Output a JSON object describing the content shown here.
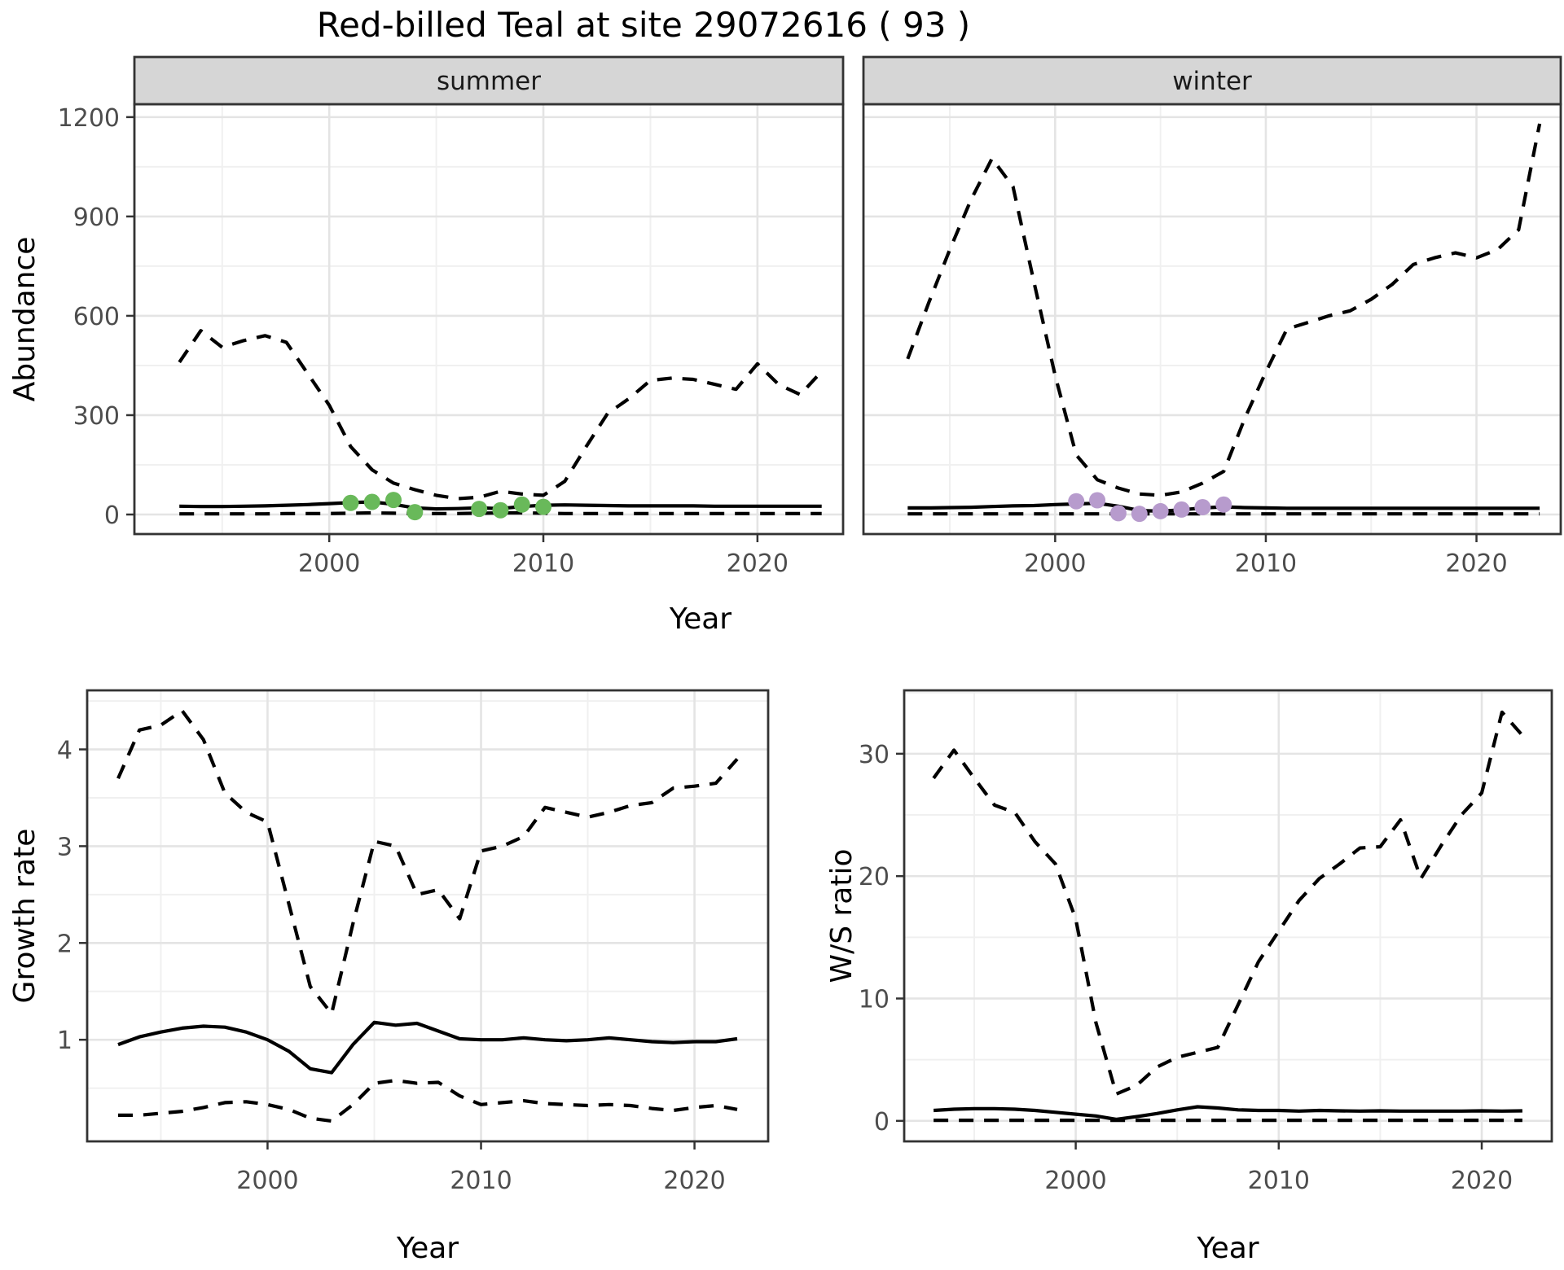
{
  "title": "Red-billed Teal at site 29072616 ( 93 )",
  "shared_axes": {
    "top_xlabel": "Year",
    "top_ylabel": "Abundance"
  },
  "colors": {
    "summer_points": "#69b95a",
    "winter_points": "#b79bcd",
    "line": "#000000",
    "panel_border": "#333333",
    "grid_major": "#e4e4e4",
    "grid_minor": "#f0f0f0",
    "strip_bg": "#d6d6d6",
    "strip_text": "#1a1a1a",
    "tick_text": "#4d4d4d"
  },
  "chart_data": [
    {
      "id": "abundance-summer",
      "type": "line",
      "facet": "summer",
      "xlabel": "Year",
      "ylabel": "Abundance",
      "xlim": [
        1990.9,
        2024.0
      ],
      "ylim": [
        -59,
        1239
      ],
      "xticks": [
        2000,
        2010,
        2020
      ],
      "yticks": [
        0,
        300,
        600,
        900,
        1200
      ],
      "grid": true,
      "series": [
        {
          "name": "upper-credible-interval",
          "style": "dashed",
          "x": [
            1993,
            1994,
            1995,
            1996,
            1997,
            1998,
            1999,
            2000,
            2001,
            2002,
            2003,
            2004,
            2005,
            2006,
            2007,
            2008,
            2009,
            2010,
            2011,
            2012,
            2013,
            2014,
            2015,
            2016,
            2017,
            2018,
            2019,
            2020,
            2021,
            2022,
            2023
          ],
          "y": [
            460,
            555,
            505,
            525,
            540,
            520,
            425,
            330,
            205,
            135,
            95,
            75,
            58,
            48,
            52,
            70,
            62,
            58,
            100,
            205,
            305,
            350,
            405,
            412,
            408,
            393,
            378,
            455,
            392,
            362,
            432
          ]
        },
        {
          "name": "median-abundance",
          "style": "solid",
          "x": [
            1993,
            1994,
            1995,
            1996,
            1997,
            1998,
            1999,
            2000,
            2001,
            2002,
            2003,
            2004,
            2005,
            2006,
            2007,
            2008,
            2009,
            2010,
            2011,
            2012,
            2013,
            2014,
            2015,
            2016,
            2017,
            2018,
            2019,
            2020,
            2021,
            2022,
            2023
          ],
          "y": [
            25,
            24,
            24,
            25,
            26,
            28,
            30,
            33,
            36,
            38,
            31,
            20,
            17,
            18,
            20,
            18,
            24,
            28,
            29,
            28,
            27,
            26,
            26,
            26,
            26,
            25,
            25,
            25,
            25,
            25,
            25
          ]
        },
        {
          "name": "lower-credible-interval",
          "style": "dashed",
          "x": [
            1993,
            1994,
            1995,
            1996,
            1997,
            1998,
            1999,
            2000,
            2001,
            2002,
            2003,
            2004,
            2005,
            2006,
            2007,
            2008,
            2009,
            2010,
            2011,
            2012,
            2013,
            2014,
            2015,
            2016,
            2017,
            2018,
            2019,
            2020,
            2021,
            2022,
            2023
          ],
          "y": [
            2,
            2,
            2,
            2,
            2,
            3,
            3,
            3,
            4,
            5,
            4,
            3,
            3,
            3,
            4,
            5,
            5,
            4,
            3,
            3,
            3,
            3,
            3,
            3,
            3,
            3,
            3,
            3,
            3,
            3,
            3
          ]
        }
      ],
      "points": {
        "name": "observed-summer-counts",
        "color": "#69b95a",
        "x": [
          2001,
          2002,
          2003,
          2004,
          2007,
          2008,
          2009,
          2010
        ],
        "y": [
          35,
          38,
          44,
          7,
          17,
          13,
          30,
          23
        ]
      }
    },
    {
      "id": "abundance-winter",
      "type": "line",
      "facet": "winter",
      "xlabel": "Year",
      "ylabel": "Abundance",
      "xlim": [
        1990.9,
        2024.0
      ],
      "ylim": [
        -59,
        1239
      ],
      "xticks": [
        2000,
        2010,
        2020
      ],
      "yticks": [
        0,
        300,
        600,
        900,
        1200
      ],
      "grid": true,
      "series": [
        {
          "name": "upper-credible-interval",
          "style": "dashed",
          "x": [
            1993,
            1994,
            1995,
            1996,
            1997,
            1998,
            1999,
            2000,
            2001,
            2002,
            2003,
            2004,
            2005,
            2006,
            2007,
            2008,
            2009,
            2010,
            2011,
            2012,
            2013,
            2014,
            2015,
            2016,
            2017,
            2018,
            2019,
            2020,
            2021,
            2022,
            2023
          ],
          "y": [
            470,
            640,
            800,
            950,
            1075,
            990,
            700,
            420,
            180,
            105,
            80,
            62,
            58,
            68,
            95,
            130,
            290,
            430,
            560,
            580,
            600,
            615,
            650,
            695,
            755,
            775,
            790,
            775,
            800,
            860,
            1180
          ]
        },
        {
          "name": "median-abundance",
          "style": "solid",
          "x": [
            1993,
            1994,
            1995,
            1996,
            1997,
            1998,
            1999,
            2000,
            2001,
            2002,
            2003,
            2004,
            2005,
            2006,
            2007,
            2008,
            2009,
            2010,
            2011,
            2012,
            2013,
            2014,
            2015,
            2016,
            2017,
            2018,
            2019,
            2020,
            2021,
            2022,
            2023
          ],
          "y": [
            20,
            20,
            21,
            22,
            24,
            26,
            27,
            30,
            32,
            34,
            25,
            12,
            10,
            14,
            20,
            23,
            21,
            20,
            19,
            19,
            19,
            19,
            19,
            19,
            19,
            19,
            19,
            19,
            19,
            19,
            19
          ]
        },
        {
          "name": "lower-credible-interval",
          "style": "dashed",
          "x": [
            1993,
            1994,
            1995,
            1996,
            1997,
            1998,
            1999,
            2000,
            2001,
            2002,
            2003,
            2004,
            2005,
            2006,
            2007,
            2008,
            2009,
            2010,
            2011,
            2012,
            2013,
            2014,
            2015,
            2016,
            2017,
            2018,
            2019,
            2020,
            2021,
            2022,
            2023
          ],
          "y": [
            2,
            2,
            2,
            2,
            2,
            2,
            2,
            2,
            2,
            2,
            2,
            2,
            2,
            2,
            2,
            2,
            2,
            2,
            2,
            2,
            2,
            2,
            2,
            2,
            2,
            2,
            2,
            2,
            2,
            2,
            2
          ]
        }
      ],
      "points": {
        "name": "observed-winter-counts",
        "color": "#b79bcd",
        "x": [
          2001,
          2002,
          2003,
          2004,
          2005,
          2006,
          2007,
          2008
        ],
        "y": [
          40,
          43,
          4,
          2,
          10,
          15,
          22,
          30
        ]
      }
    },
    {
      "id": "growth-rate",
      "type": "line",
      "facet": null,
      "xlabel": "Year",
      "ylabel": "Growth rate",
      "xlim": [
        1991.55,
        2023.45
      ],
      "ylim": [
        -0.05,
        4.61
      ],
      "xticks": [
        2000,
        2010,
        2020
      ],
      "yticks": [
        1,
        2,
        3,
        4
      ],
      "grid": true,
      "series": [
        {
          "name": "upper-credible-interval",
          "style": "dashed",
          "x": [
            1993,
            1994,
            1995,
            1996,
            1997,
            1998,
            1999,
            2000,
            2001,
            2002,
            2003,
            2004,
            2005,
            2006,
            2007,
            2008,
            2009,
            2010,
            2011,
            2012,
            2013,
            2014,
            2015,
            2016,
            2017,
            2018,
            2019,
            2020,
            2021,
            2022
          ],
          "y": [
            3.7,
            4.2,
            4.25,
            4.4,
            4.1,
            3.55,
            3.35,
            3.25,
            2.4,
            1.55,
            1.27,
            2.2,
            3.05,
            3.0,
            2.5,
            2.55,
            2.25,
            2.95,
            3.0,
            3.1,
            3.4,
            3.35,
            3.3,
            3.35,
            3.42,
            3.45,
            3.6,
            3.62,
            3.65,
            3.9
          ]
        },
        {
          "name": "median-growth-rate",
          "style": "solid",
          "x": [
            1993,
            1994,
            1995,
            1996,
            1997,
            1998,
            1999,
            2000,
            2001,
            2002,
            2003,
            2004,
            2005,
            2006,
            2007,
            2008,
            2009,
            2010,
            2011,
            2012,
            2013,
            2014,
            2015,
            2016,
            2017,
            2018,
            2019,
            2020,
            2021,
            2022
          ],
          "y": [
            0.95,
            1.03,
            1.08,
            1.12,
            1.14,
            1.13,
            1.08,
            1.0,
            0.88,
            0.7,
            0.66,
            0.95,
            1.18,
            1.15,
            1.17,
            1.09,
            1.01,
            1.0,
            1.0,
            1.02,
            1.0,
            0.99,
            1.0,
            1.02,
            1.0,
            0.98,
            0.97,
            0.98,
            0.98,
            1.01
          ]
        },
        {
          "name": "lower-credible-interval",
          "style": "dashed",
          "x": [
            1993,
            1994,
            1995,
            1996,
            1997,
            1998,
            1999,
            2000,
            2001,
            2002,
            2003,
            2004,
            2005,
            2006,
            2007,
            2008,
            2009,
            2010,
            2011,
            2012,
            2013,
            2014,
            2015,
            2016,
            2017,
            2018,
            2019,
            2020,
            2021,
            2022
          ],
          "y": [
            0.22,
            0.22,
            0.24,
            0.26,
            0.3,
            0.35,
            0.36,
            0.33,
            0.28,
            0.19,
            0.16,
            0.33,
            0.55,
            0.58,
            0.55,
            0.56,
            0.42,
            0.33,
            0.35,
            0.37,
            0.34,
            0.33,
            0.32,
            0.33,
            0.32,
            0.29,
            0.27,
            0.3,
            0.32,
            0.28
          ]
        }
      ],
      "points": null
    },
    {
      "id": "ws-ratio",
      "type": "line",
      "facet": null,
      "xlabel": "Year",
      "ylabel": "W/S ratio",
      "xlim": [
        1991.55,
        2023.45
      ],
      "ylim": [
        -1.675,
        35.18
      ],
      "xticks": [
        2000,
        2010,
        2020
      ],
      "yticks": [
        0,
        10,
        20,
        30
      ],
      "grid": true,
      "series": [
        {
          "name": "upper-credible-interval",
          "style": "dashed",
          "x": [
            1993,
            1994,
            1995,
            1996,
            1997,
            1998,
            1999,
            2000,
            2001,
            2002,
            2003,
            2004,
            2005,
            2006,
            2007,
            2008,
            2009,
            2010,
            2011,
            2012,
            2013,
            2014,
            2015,
            2016,
            2017,
            2018,
            2019,
            2020,
            2021,
            2022
          ],
          "y": [
            28,
            30.3,
            28,
            25.8,
            25.2,
            22.8,
            21,
            16.5,
            8,
            2.2,
            2.9,
            4.4,
            5.2,
            5.6,
            6,
            9.5,
            13,
            15.5,
            18,
            19.8,
            21,
            22.3,
            22.4,
            24.6,
            19.8,
            22.5,
            25,
            26.8,
            33.4,
            31.5
          ]
        },
        {
          "name": "median-ws-ratio",
          "style": "solid",
          "x": [
            1993,
            1994,
            1995,
            1996,
            1997,
            1998,
            1999,
            2000,
            2001,
            2002,
            2003,
            2004,
            2005,
            2006,
            2007,
            2008,
            2009,
            2010,
            2011,
            2012,
            2013,
            2014,
            2015,
            2016,
            2017,
            2018,
            2019,
            2020,
            2021,
            2022
          ],
          "y": [
            0.85,
            0.95,
            1.0,
            1.0,
            0.95,
            0.85,
            0.7,
            0.55,
            0.4,
            0.12,
            0.35,
            0.6,
            0.9,
            1.15,
            1.05,
            0.9,
            0.85,
            0.85,
            0.8,
            0.85,
            0.82,
            0.8,
            0.82,
            0.8,
            0.8,
            0.8,
            0.8,
            0.82,
            0.8,
            0.82
          ]
        },
        {
          "name": "lower-credible-interval",
          "style": "dashed",
          "x": [
            1993,
            1994,
            1995,
            1996,
            1997,
            1998,
            1999,
            2000,
            2001,
            2002,
            2003,
            2004,
            2005,
            2006,
            2007,
            2008,
            2009,
            2010,
            2011,
            2012,
            2013,
            2014,
            2015,
            2016,
            2017,
            2018,
            2019,
            2020,
            2021,
            2022
          ],
          "y": [
            0.05,
            0.05,
            0.05,
            0.05,
            0.05,
            0.05,
            0.05,
            0.05,
            0.05,
            0.05,
            0.05,
            0.05,
            0.05,
            0.05,
            0.05,
            0.05,
            0.05,
            0.05,
            0.05,
            0.05,
            0.05,
            0.05,
            0.05,
            0.05,
            0.05,
            0.05,
            0.05,
            0.05,
            0.05,
            0.05
          ]
        }
      ],
      "points": null
    }
  ]
}
